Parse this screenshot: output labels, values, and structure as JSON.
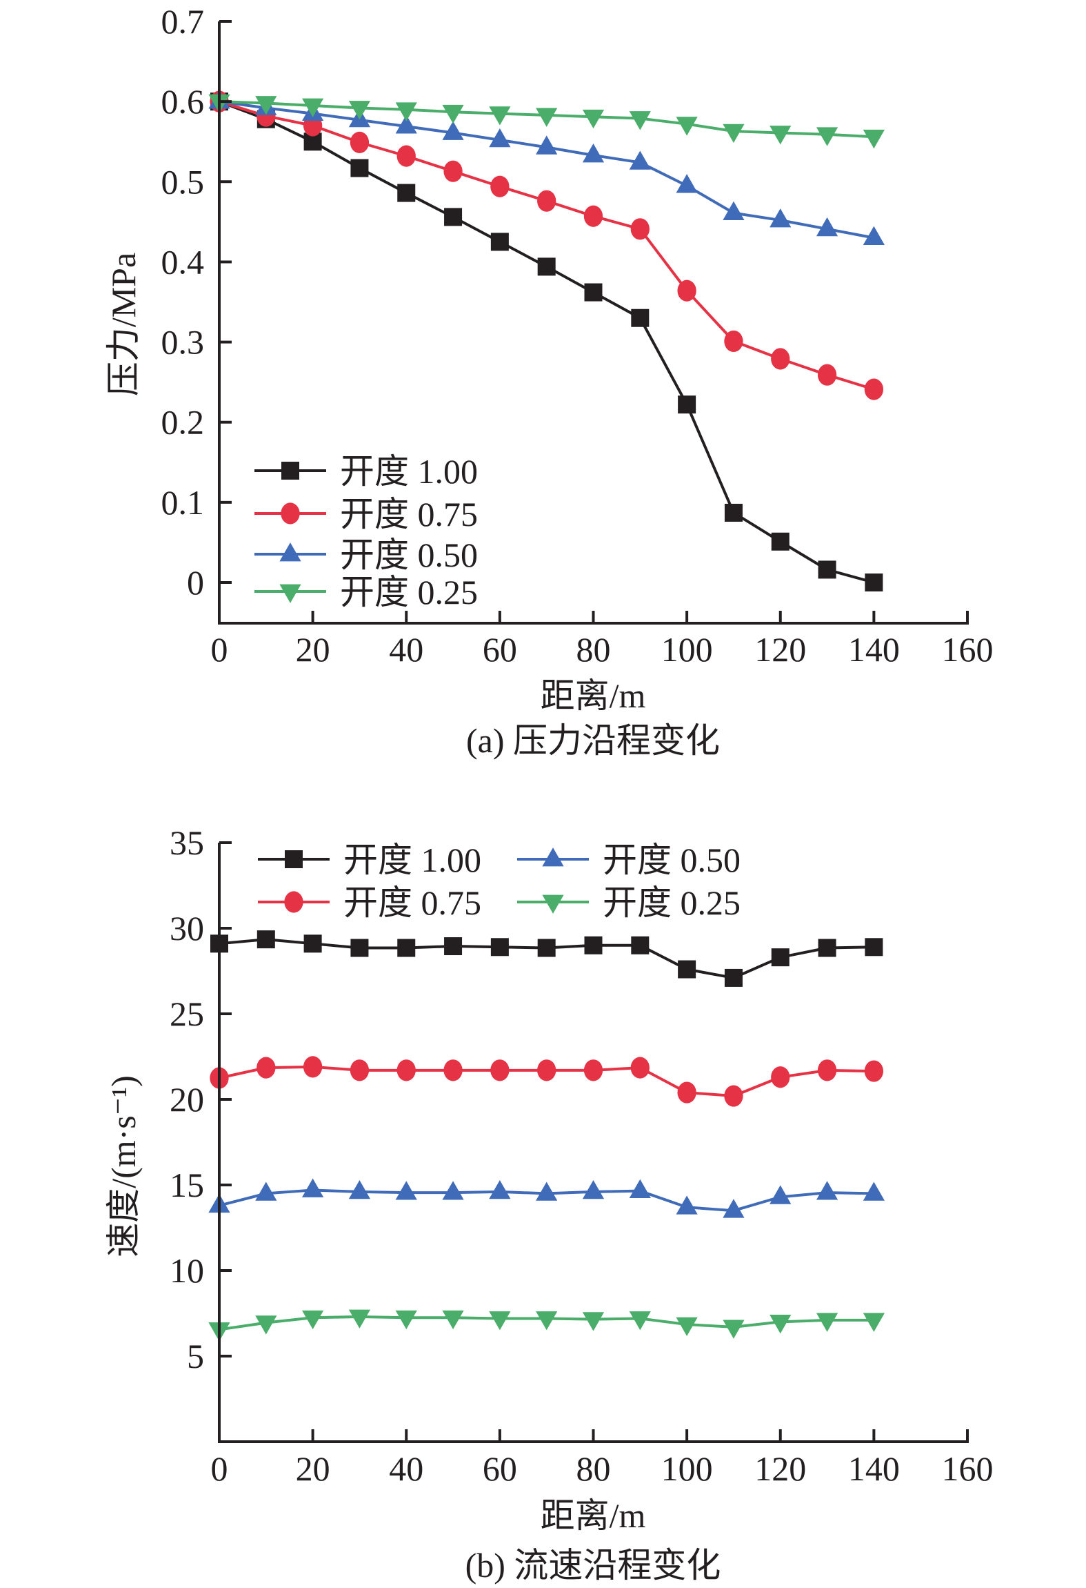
{
  "chart_data": [
    {
      "type": "line",
      "panel": "a",
      "caption": "(a) 压力沿程变化",
      "xlabel": "距离/m",
      "ylabel": "压力/MPa",
      "xlim": [
        0,
        160
      ],
      "ylim": [
        -0.05,
        0.7
      ],
      "xticks": [
        0,
        20,
        40,
        60,
        80,
        100,
        120,
        140,
        160
      ],
      "xtick_labels": [
        "0",
        "20",
        "40",
        "60",
        "80",
        "100",
        "120",
        "140",
        "160"
      ],
      "yticks": [
        0,
        0.1,
        0.2,
        0.3,
        0.4,
        0.5,
        0.6,
        0.7
      ],
      "ytick_labels": [
        "0",
        "0.1",
        "0.2",
        "0.3",
        "0.4",
        "0.5",
        "0.6",
        "0.7"
      ],
      "grid": false,
      "legend_position": "bottom-left",
      "legend_columns": 1,
      "x": [
        0,
        10,
        20,
        30,
        40,
        50,
        60,
        70,
        80,
        90,
        100,
        110,
        120,
        130,
        140
      ],
      "series": [
        {
          "name": "开度 1.00",
          "color": "#231f20",
          "marker": "square",
          "values": [
            0.6,
            0.578,
            0.55,
            0.517,
            0.486,
            0.456,
            0.425,
            0.394,
            0.362,
            0.33,
            0.222,
            0.087,
            0.051,
            0.016,
            0.0
          ]
        },
        {
          "name": "开度 0.75",
          "color": "#e63245",
          "marker": "circle",
          "values": [
            0.6,
            0.582,
            0.57,
            0.549,
            0.532,
            0.513,
            0.494,
            0.476,
            0.457,
            0.441,
            0.364,
            0.301,
            0.279,
            0.259,
            0.241
          ]
        },
        {
          "name": "开度 0.50",
          "color": "#3f6bb8",
          "marker": "triangle-up",
          "values": [
            0.6,
            0.592,
            0.585,
            0.577,
            0.569,
            0.561,
            0.552,
            0.543,
            0.533,
            0.524,
            0.495,
            0.461,
            0.452,
            0.441,
            0.43
          ]
        },
        {
          "name": "开度 0.25",
          "color": "#4aad6a",
          "marker": "triangle-down",
          "values": [
            0.6,
            0.598,
            0.595,
            0.592,
            0.59,
            0.587,
            0.585,
            0.583,
            0.581,
            0.579,
            0.572,
            0.563,
            0.561,
            0.559,
            0.556
          ]
        }
      ]
    },
    {
      "type": "line",
      "panel": "b",
      "caption": "(b) 流速沿程变化",
      "xlabel": "距离/m",
      "ylabel": "速度/(m·s⁻¹)",
      "xlim": [
        0,
        160
      ],
      "ylim": [
        0,
        35
      ],
      "xticks": [
        0,
        20,
        40,
        60,
        80,
        100,
        120,
        140,
        160
      ],
      "xtick_labels": [
        "0",
        "20",
        "40",
        "60",
        "80",
        "100",
        "120",
        "140",
        "160"
      ],
      "yticks": [
        5,
        10,
        15,
        20,
        25,
        30,
        35
      ],
      "ytick_labels": [
        "5",
        "10",
        "15",
        "20",
        "25",
        "30",
        "35"
      ],
      "grid": false,
      "legend_position": "top",
      "legend_columns": 2,
      "x": [
        0,
        10,
        20,
        30,
        40,
        50,
        60,
        70,
        80,
        90,
        100,
        110,
        120,
        130,
        140
      ],
      "series": [
        {
          "name": "开度 1.00",
          "color": "#231f20",
          "marker": "square",
          "values": [
            29.1,
            29.35,
            29.1,
            28.85,
            28.85,
            28.95,
            28.9,
            28.85,
            29.0,
            29.0,
            27.6,
            27.1,
            28.3,
            28.85,
            28.9
          ]
        },
        {
          "name": "开度 0.75",
          "color": "#e63245",
          "marker": "circle",
          "values": [
            21.25,
            21.85,
            21.9,
            21.7,
            21.7,
            21.7,
            21.7,
            21.7,
            21.7,
            21.85,
            20.4,
            20.2,
            21.3,
            21.7,
            21.65
          ]
        },
        {
          "name": "开度 0.50",
          "color": "#3f6bb8",
          "marker": "triangle-up",
          "values": [
            13.8,
            14.5,
            14.7,
            14.6,
            14.55,
            14.55,
            14.6,
            14.5,
            14.6,
            14.65,
            13.7,
            13.5,
            14.3,
            14.55,
            14.5
          ]
        },
        {
          "name": "开度 0.25",
          "color": "#4aad6a",
          "marker": "triangle-down",
          "values": [
            6.55,
            6.95,
            7.25,
            7.3,
            7.25,
            7.25,
            7.2,
            7.2,
            7.15,
            7.2,
            6.85,
            6.7,
            7.0,
            7.1,
            7.1
          ]
        }
      ]
    }
  ]
}
